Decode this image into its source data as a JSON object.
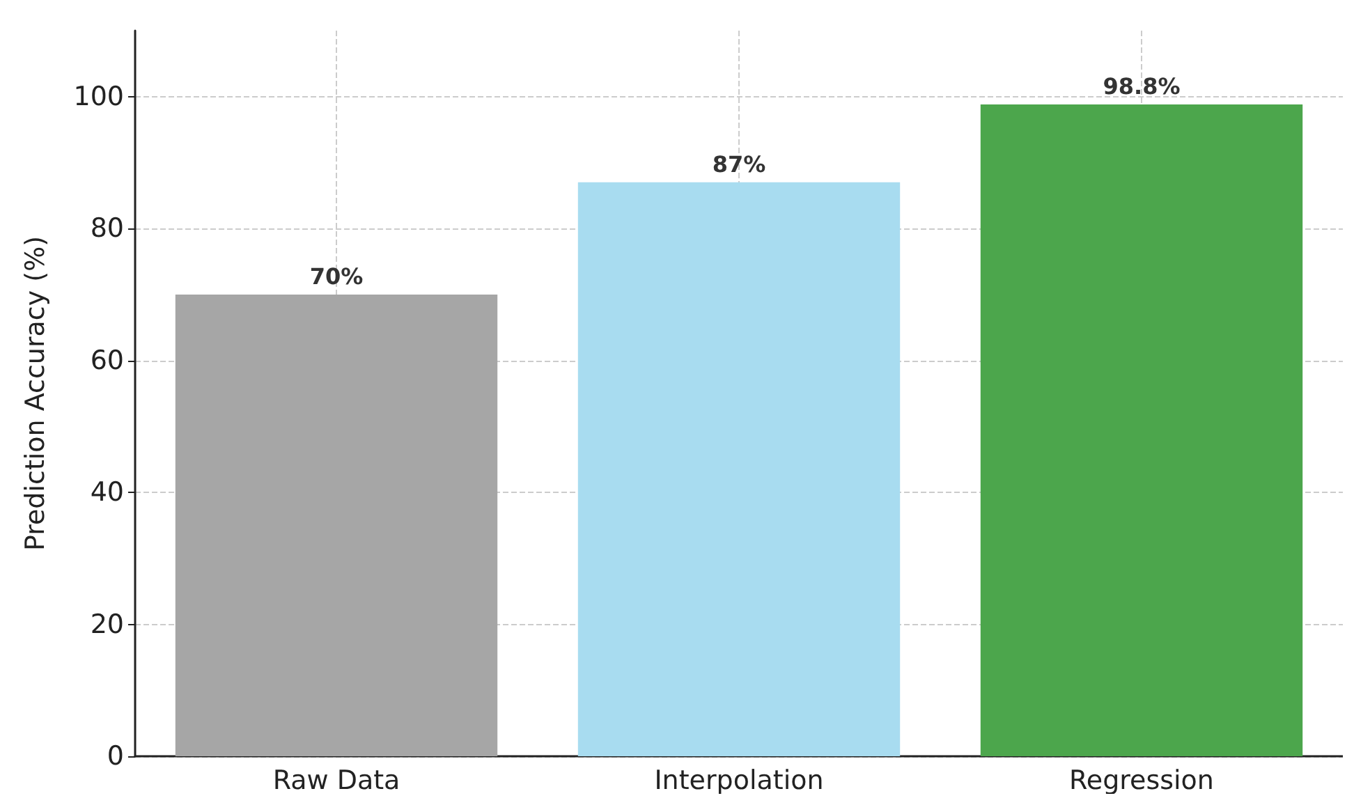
{
  "chart_data": {
    "type": "bar",
    "ylabel": "Prediction Accuracy (%)",
    "categories": [
      "Raw Data",
      "Interpolation",
      "Regression"
    ],
    "values": [
      70,
      87,
      98.8
    ],
    "colors": [
      "#a6a6a6",
      "#a8dcf0",
      "#4ca64c"
    ],
    "value_labels": [
      "70%",
      "87%",
      "98.8%"
    ],
    "ylim": [
      0,
      110
    ],
    "yticks": [
      0,
      20,
      40,
      60,
      80,
      100
    ],
    "grid": true
  }
}
